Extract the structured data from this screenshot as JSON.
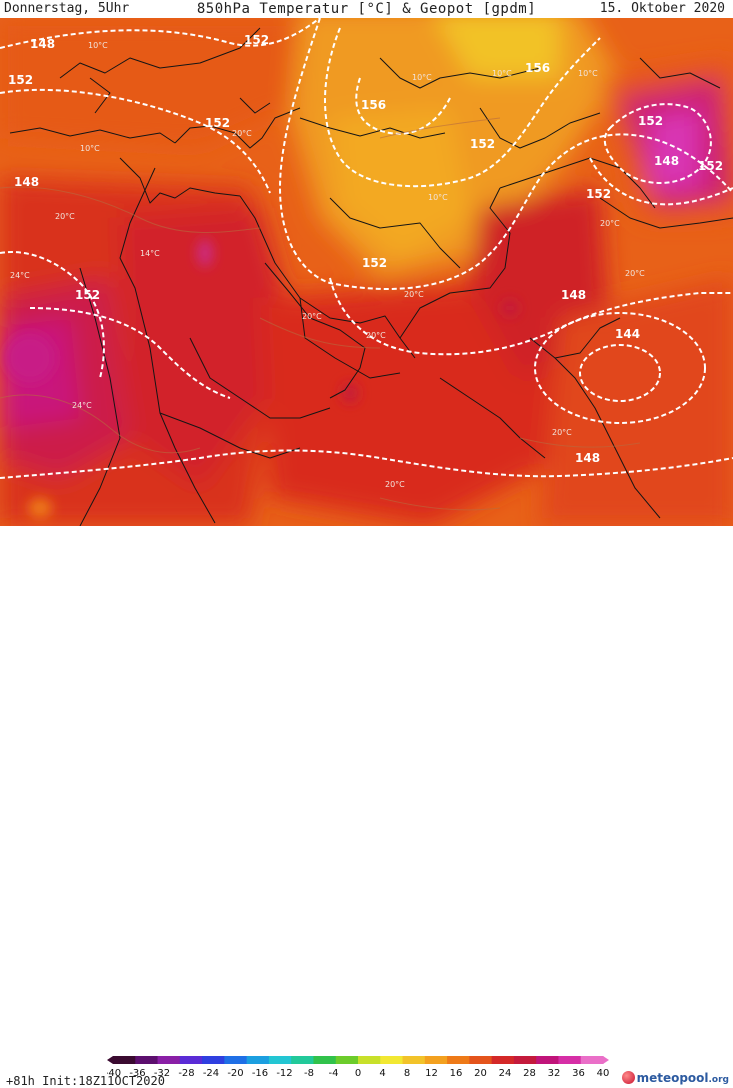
{
  "header": {
    "left": "Donnerstag, 5Uhr",
    "title": "850hPa Temperatur [°C] & Geopot [gpdm]",
    "right": "15. Oktober 2020"
  },
  "footer": {
    "run_info": "+81h Init:18Z11OCT2020",
    "logo_main": "meteopool",
    "logo_tld": ".org"
  },
  "colorbar": {
    "ticks": [
      "-40",
      "-36",
      "-32",
      "-28",
      "-24",
      "-20",
      "-16",
      "-12",
      "-8",
      "-4",
      "0",
      "4",
      "8",
      "12",
      "16",
      "20",
      "24",
      "28",
      "32",
      "36",
      "40"
    ],
    "colors": [
      "#3a0a30",
      "#5c0f6e",
      "#8a1fa6",
      "#5a2bd6",
      "#2f3fe0",
      "#1f6fe6",
      "#1c9fe0",
      "#23c6d3",
      "#22c99a",
      "#31c24b",
      "#6ccc2b",
      "#c8e02a",
      "#f2e832",
      "#f2c32a",
      "#f3a11f",
      "#ee7a18",
      "#e4541c",
      "#d42828",
      "#c41a3c",
      "#c0147a",
      "#d62ea6",
      "#ea6fc8"
    ]
  },
  "map": {
    "geopotential_labels": [
      "148",
      "152",
      "152",
      "152",
      "156",
      "156",
      "152",
      "148",
      "152",
      "152",
      "152",
      "148",
      "152",
      "148",
      "144",
      "148",
      "152"
    ],
    "temperature_labels": [
      "10°C",
      "10°C",
      "10°C",
      "10°C",
      "10°C",
      "20°C",
      "20°C",
      "20°C",
      "20°C",
      "20°C",
      "20°C",
      "20°C",
      "24°C",
      "24°C",
      "14°C",
      "10°C",
      "20°C",
      "20°C"
    ]
  }
}
